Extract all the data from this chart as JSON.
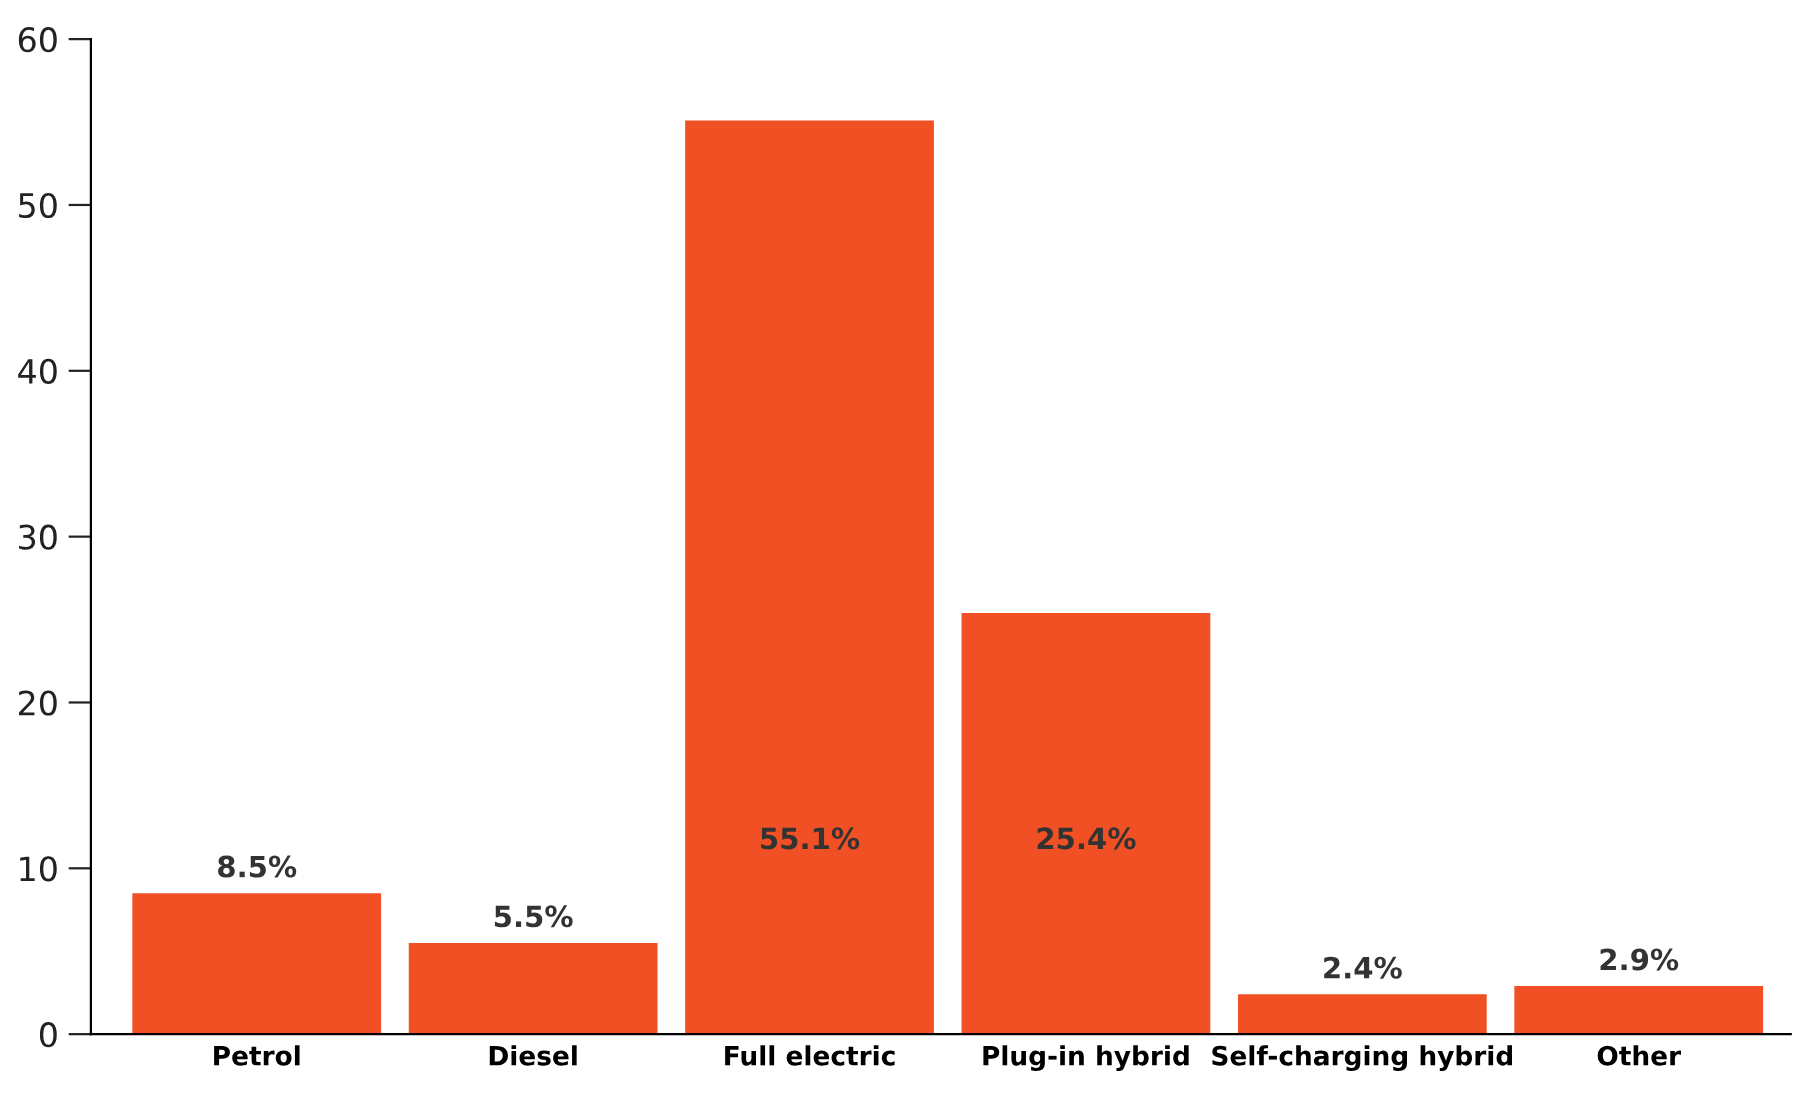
{
  "chart_data": {
    "type": "bar",
    "categories": [
      "Petrol",
      "Diesel",
      "Full electric",
      "Plug-in hybrid",
      "Self-charging hybrid",
      "Other"
    ],
    "values": [
      8.5,
      5.5,
      55.1,
      25.4,
      2.4,
      2.9
    ],
    "value_labels": [
      "8.5%",
      "5.5%",
      "55.1%",
      "25.4%",
      "2.4%",
      "2.9%"
    ],
    "color": "#f05023",
    "ylim": [
      0,
      60
    ],
    "yticks": [
      0,
      10,
      20,
      30,
      40,
      50,
      60
    ],
    "grid": false,
    "legend": false
  }
}
